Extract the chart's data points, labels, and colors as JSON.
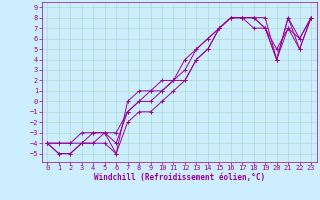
{
  "xlabel": "Windchill (Refroidissement éolien,°C)",
  "bg_color": "#cceeff",
  "grid_color": "#aaddcc",
  "line_color": "#990099",
  "xlim": [
    -0.5,
    23.5
  ],
  "ylim": [
    -5.8,
    9.5
  ],
  "xticks": [
    0,
    1,
    2,
    3,
    4,
    5,
    6,
    7,
    8,
    9,
    10,
    11,
    12,
    13,
    14,
    15,
    16,
    17,
    18,
    19,
    20,
    21,
    22,
    23
  ],
  "yticks": [
    -5,
    -4,
    -3,
    -2,
    -1,
    0,
    1,
    2,
    3,
    4,
    5,
    6,
    7,
    8,
    9
  ],
  "lines": [
    {
      "x": [
        0,
        1,
        2,
        3,
        4,
        5,
        6,
        7,
        8,
        9,
        10,
        11,
        12,
        13,
        14,
        15,
        16,
        17,
        18,
        19,
        20,
        21,
        22,
        23
      ],
      "y": [
        -4,
        -5,
        -5,
        -4,
        -4,
        -4,
        -5,
        -2,
        -1,
        -1,
        0,
        1,
        2,
        4,
        5,
        7,
        8,
        8,
        8,
        7,
        4,
        7,
        6,
        8
      ]
    },
    {
      "x": [
        0,
        1,
        2,
        3,
        4,
        5,
        6,
        7,
        8,
        9,
        10,
        11,
        12,
        13,
        14,
        15,
        16,
        17,
        18,
        19,
        20,
        21,
        22,
        23
      ],
      "y": [
        -4,
        -5,
        -5,
        -4,
        -4,
        -3,
        -3,
        -1,
        0,
        0,
        1,
        2,
        2,
        4,
        5,
        7,
        8,
        8,
        7,
        7,
        5,
        7,
        5,
        8
      ]
    },
    {
      "x": [
        0,
        1,
        2,
        3,
        4,
        5,
        6,
        7,
        8,
        9,
        10,
        11,
        12,
        13,
        14,
        15,
        16,
        17,
        18,
        19,
        20,
        21,
        22,
        23
      ],
      "y": [
        -4,
        -4,
        -4,
        -4,
        -3,
        -3,
        -4,
        -1,
        0,
        1,
        1,
        2,
        3,
        5,
        6,
        7,
        8,
        8,
        8,
        7,
        4,
        8,
        5,
        8
      ]
    },
    {
      "x": [
        0,
        1,
        2,
        3,
        4,
        5,
        6,
        7,
        8,
        9,
        10,
        11,
        12,
        13,
        14,
        15,
        16,
        17,
        18,
        19,
        20,
        21,
        22,
        23
      ],
      "y": [
        -4,
        -4,
        -4,
        -3,
        -3,
        -3,
        -5,
        0,
        1,
        1,
        2,
        2,
        4,
        5,
        6,
        7,
        8,
        8,
        8,
        8,
        4,
        8,
        6,
        8
      ]
    }
  ],
  "tick_fontsize": 5.0,
  "xlabel_fontsize": 5.5
}
